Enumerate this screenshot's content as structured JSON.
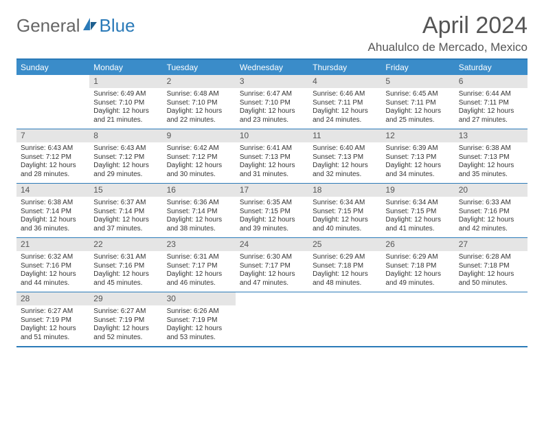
{
  "logo": {
    "text1": "General",
    "text2": "Blue"
  },
  "title": "April 2024",
  "subtitle": "Ahualulco de Mercado, Mexico",
  "colors": {
    "headerBg": "#3a8cc9",
    "border": "#2a7ab8",
    "dayNumBg": "#e5e5e5",
    "text": "#555555"
  },
  "dayHeaders": [
    "Sunday",
    "Monday",
    "Tuesday",
    "Wednesday",
    "Thursday",
    "Friday",
    "Saturday"
  ],
  "weeks": [
    [
      null,
      {
        "n": "1",
        "sr": "6:49 AM",
        "ss": "7:10 PM",
        "dl": "12 hours and 21 minutes."
      },
      {
        "n": "2",
        "sr": "6:48 AM",
        "ss": "7:10 PM",
        "dl": "12 hours and 22 minutes."
      },
      {
        "n": "3",
        "sr": "6:47 AM",
        "ss": "7:10 PM",
        "dl": "12 hours and 23 minutes."
      },
      {
        "n": "4",
        "sr": "6:46 AM",
        "ss": "7:11 PM",
        "dl": "12 hours and 24 minutes."
      },
      {
        "n": "5",
        "sr": "6:45 AM",
        "ss": "7:11 PM",
        "dl": "12 hours and 25 minutes."
      },
      {
        "n": "6",
        "sr": "6:44 AM",
        "ss": "7:11 PM",
        "dl": "12 hours and 27 minutes."
      }
    ],
    [
      {
        "n": "7",
        "sr": "6:43 AM",
        "ss": "7:12 PM",
        "dl": "12 hours and 28 minutes."
      },
      {
        "n": "8",
        "sr": "6:43 AM",
        "ss": "7:12 PM",
        "dl": "12 hours and 29 minutes."
      },
      {
        "n": "9",
        "sr": "6:42 AM",
        "ss": "7:12 PM",
        "dl": "12 hours and 30 minutes."
      },
      {
        "n": "10",
        "sr": "6:41 AM",
        "ss": "7:13 PM",
        "dl": "12 hours and 31 minutes."
      },
      {
        "n": "11",
        "sr": "6:40 AM",
        "ss": "7:13 PM",
        "dl": "12 hours and 32 minutes."
      },
      {
        "n": "12",
        "sr": "6:39 AM",
        "ss": "7:13 PM",
        "dl": "12 hours and 34 minutes."
      },
      {
        "n": "13",
        "sr": "6:38 AM",
        "ss": "7:13 PM",
        "dl": "12 hours and 35 minutes."
      }
    ],
    [
      {
        "n": "14",
        "sr": "6:38 AM",
        "ss": "7:14 PM",
        "dl": "12 hours and 36 minutes."
      },
      {
        "n": "15",
        "sr": "6:37 AM",
        "ss": "7:14 PM",
        "dl": "12 hours and 37 minutes."
      },
      {
        "n": "16",
        "sr": "6:36 AM",
        "ss": "7:14 PM",
        "dl": "12 hours and 38 minutes."
      },
      {
        "n": "17",
        "sr": "6:35 AM",
        "ss": "7:15 PM",
        "dl": "12 hours and 39 minutes."
      },
      {
        "n": "18",
        "sr": "6:34 AM",
        "ss": "7:15 PM",
        "dl": "12 hours and 40 minutes."
      },
      {
        "n": "19",
        "sr": "6:34 AM",
        "ss": "7:15 PM",
        "dl": "12 hours and 41 minutes."
      },
      {
        "n": "20",
        "sr": "6:33 AM",
        "ss": "7:16 PM",
        "dl": "12 hours and 42 minutes."
      }
    ],
    [
      {
        "n": "21",
        "sr": "6:32 AM",
        "ss": "7:16 PM",
        "dl": "12 hours and 44 minutes."
      },
      {
        "n": "22",
        "sr": "6:31 AM",
        "ss": "7:16 PM",
        "dl": "12 hours and 45 minutes."
      },
      {
        "n": "23",
        "sr": "6:31 AM",
        "ss": "7:17 PM",
        "dl": "12 hours and 46 minutes."
      },
      {
        "n": "24",
        "sr": "6:30 AM",
        "ss": "7:17 PM",
        "dl": "12 hours and 47 minutes."
      },
      {
        "n": "25",
        "sr": "6:29 AM",
        "ss": "7:18 PM",
        "dl": "12 hours and 48 minutes."
      },
      {
        "n": "26",
        "sr": "6:29 AM",
        "ss": "7:18 PM",
        "dl": "12 hours and 49 minutes."
      },
      {
        "n": "27",
        "sr": "6:28 AM",
        "ss": "7:18 PM",
        "dl": "12 hours and 50 minutes."
      }
    ],
    [
      {
        "n": "28",
        "sr": "6:27 AM",
        "ss": "7:19 PM",
        "dl": "12 hours and 51 minutes."
      },
      {
        "n": "29",
        "sr": "6:27 AM",
        "ss": "7:19 PM",
        "dl": "12 hours and 52 minutes."
      },
      {
        "n": "30",
        "sr": "6:26 AM",
        "ss": "7:19 PM",
        "dl": "12 hours and 53 minutes."
      },
      null,
      null,
      null,
      null
    ]
  ],
  "labels": {
    "sunrise": "Sunrise: ",
    "sunset": "Sunset: ",
    "daylight": "Daylight: "
  }
}
